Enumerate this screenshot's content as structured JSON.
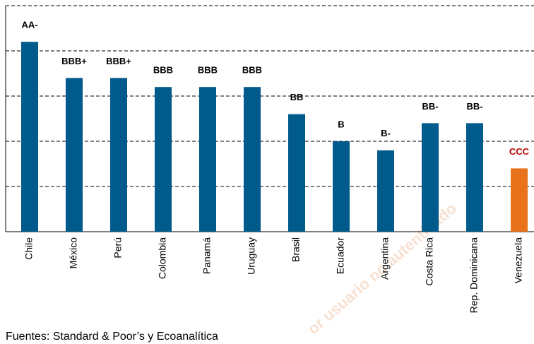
{
  "chart_data": {
    "type": "bar",
    "categories": [
      "Chile",
      "México",
      "Perú",
      "Colombia",
      "Panamá",
      "Uruguay",
      "Brasil",
      "Ecuador",
      "Argentina",
      "Costa Rica",
      "Rep. Dominicana",
      "Venezuela"
    ],
    "values": [
      4.2,
      3.4,
      3.4,
      3.2,
      3.2,
      3.2,
      2.6,
      2.0,
      1.8,
      2.4,
      2.4,
      1.4
    ],
    "ratings": [
      "AA-",
      "BBB+",
      "BBB+",
      "BBB",
      "BBB",
      "BBB",
      "BB",
      "B",
      "B-",
      "BB-",
      "BB-",
      "CCC"
    ],
    "colors": [
      "#005a8c",
      "#005a8c",
      "#005a8c",
      "#005a8c",
      "#005a8c",
      "#005a8c",
      "#005a8c",
      "#005a8c",
      "#005a8c",
      "#005a8c",
      "#005a8c",
      "#e8731a"
    ],
    "rating_colors": [
      "#000000",
      "#000000",
      "#000000",
      "#000000",
      "#000000",
      "#000000",
      "#000000",
      "#000000",
      "#000000",
      "#000000",
      "#000000",
      "#c00000"
    ],
    "ylim": [
      0,
      5
    ],
    "yticks": [
      1,
      2,
      3,
      4,
      5
    ],
    "grid": true,
    "source": "Fuentes: Standard & Poor’s y Ecoanalítica",
    "watermark": "or usuario no autenticado"
  }
}
